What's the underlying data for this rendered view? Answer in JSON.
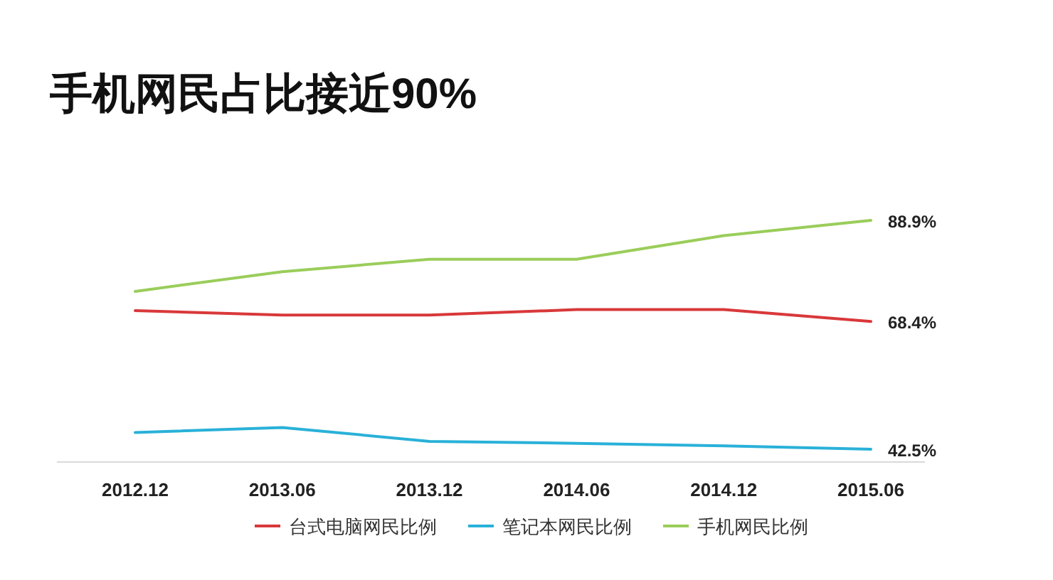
{
  "chart_data": {
    "type": "line",
    "title": "手机网民占比接近90%",
    "categories": [
      "2012.12",
      "2013.06",
      "2013.12",
      "2014.06",
      "2014.12",
      "2015.06"
    ],
    "legend": "bottom",
    "marker": "none",
    "line_style": "solid",
    "series": [
      {
        "name": "台式电脑网民比例",
        "color": "#d9383a",
        "values": [
          70.6,
          69.7,
          69.7,
          70.8,
          70.8,
          68.4
        ],
        "value_labels": [
          null,
          null,
          null,
          null,
          null,
          "68.4%"
        ]
      },
      {
        "name": "笔记本网民比例",
        "color": "#29b1d8",
        "values": [
          45.9,
          46.9,
          44.1,
          43.7,
          43.2,
          42.5
        ],
        "value_labels": [
          null,
          null,
          null,
          null,
          null,
          "42.5%"
        ]
      },
      {
        "name": "手机网民比例",
        "color": "#9acd5a",
        "values": [
          74.5,
          78.5,
          81.0,
          81.0,
          85.8,
          88.9
        ],
        "value_labels": [
          null,
          null,
          null,
          null,
          null,
          "88.9%"
        ]
      }
    ]
  }
}
